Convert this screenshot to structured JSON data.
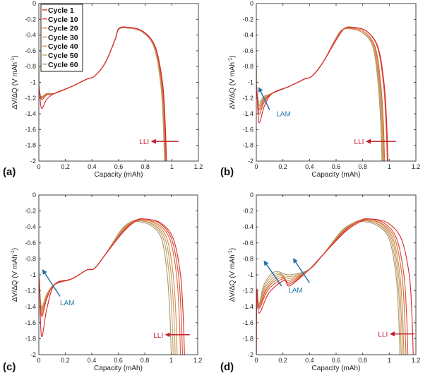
{
  "chart_data": [
    {
      "panel": "(a)",
      "type": "line",
      "xlabel": "Capacity (mAh)",
      "ylabel": "ΔV/ΔQ (V mAh-1)",
      "xlim": [
        0,
        1.2
      ],
      "ylim": [
        -2,
        0
      ],
      "xticks": [
        "0",
        "0.2",
        "0.4",
        "0.6",
        "0.8",
        "1",
        "1.2"
      ],
      "yticks": [
        "0",
        "-0.2",
        "-0.4",
        "-0.6",
        "-0.8",
        "-1",
        "-1.2",
        "-1.4",
        "-1.6",
        "-1.8",
        "-2"
      ],
      "legend": {
        "position": "top-left",
        "entries": [
          "Cycle 1",
          "Cycle 10",
          "Cycle 20",
          "Cycle 30",
          "Cycle 40",
          "Cycle 50",
          "Cycle 60"
        ]
      },
      "annotations": [
        {
          "text": "LLI",
          "type": "arrow-left",
          "y": -1.75,
          "x_from": 1.05,
          "x_to": 0.84
        }
      ],
      "series": [
        {
          "name": "Cycle 1",
          "end_capacity": 0.96,
          "min_y": -1.33,
          "peak": [
            0.66,
            -0.3
          ]
        },
        {
          "name": "Cycle 10",
          "end_capacity": 0.958,
          "min_y": -1.22,
          "peak": [
            0.66,
            -0.3
          ]
        },
        {
          "name": "Cycle 20",
          "end_capacity": 0.955,
          "min_y": -1.2,
          "peak": [
            0.66,
            -0.3
          ]
        },
        {
          "name": "Cycle 30",
          "end_capacity": 0.952,
          "min_y": -1.2,
          "peak": [
            0.66,
            -0.3
          ]
        },
        {
          "name": "Cycle 40",
          "end_capacity": 0.95,
          "min_y": -1.19,
          "peak": [
            0.66,
            -0.3
          ]
        },
        {
          "name": "Cycle 50",
          "end_capacity": 0.948,
          "min_y": -1.19,
          "peak": [
            0.66,
            -0.31
          ]
        },
        {
          "name": "Cycle 60",
          "end_capacity": 0.945,
          "min_y": -1.18,
          "peak": [
            0.66,
            -0.31
          ]
        }
      ]
    },
    {
      "panel": "(b)",
      "type": "line",
      "xlabel": "Capacity (mAh)",
      "ylabel": "ΔV/ΔQ (V mAh-1)",
      "xlim": [
        0,
        1.2
      ],
      "ylim": [
        -2,
        0
      ],
      "xticks": [
        "0",
        "0.2",
        "0.4",
        "0.6",
        "0.8",
        "1",
        "1.2"
      ],
      "yticks": [
        "0",
        "-0.2",
        "-0.4",
        "-0.6",
        "-0.8",
        "-1",
        "-1.2",
        "-1.4",
        "-1.6",
        "-1.8",
        "-2"
      ],
      "annotations": [
        {
          "text": "LAM",
          "type": "arrow-up-left",
          "x_from": 0.1,
          "y_from": -1.35,
          "x_to": 0.02,
          "y_to": -1.07
        },
        {
          "text": "LLI",
          "type": "arrow-left",
          "y": -1.75,
          "x_from": 1.05,
          "x_to": 0.82
        }
      ],
      "series": [
        {
          "name": "Cycle 1",
          "end_capacity": 0.99,
          "min_y": -1.51,
          "peak": [
            0.72,
            -0.3
          ]
        },
        {
          "name": "Cycle 10",
          "end_capacity": 0.985,
          "min_y": -1.4,
          "peak": [
            0.72,
            -0.3
          ]
        },
        {
          "name": "Cycle 20",
          "end_capacity": 0.965,
          "min_y": -1.35,
          "peak": [
            0.71,
            -0.31
          ]
        },
        {
          "name": "Cycle 30",
          "end_capacity": 0.96,
          "min_y": -1.33,
          "peak": [
            0.71,
            -0.31
          ]
        },
        {
          "name": "Cycle 40",
          "end_capacity": 0.955,
          "min_y": -1.3,
          "peak": [
            0.7,
            -0.32
          ]
        },
        {
          "name": "Cycle 50",
          "end_capacity": 0.95,
          "min_y": -1.28,
          "peak": [
            0.7,
            -0.32
          ]
        },
        {
          "name": "Cycle 60",
          "end_capacity": 0.945,
          "min_y": -1.25,
          "peak": [
            0.7,
            -0.32
          ]
        }
      ]
    },
    {
      "panel": "(c)",
      "type": "line",
      "xlabel": "Capacity (mAh)",
      "ylabel": "ΔV/ΔQ (V mAh-1)",
      "xlim": [
        0,
        1.2
      ],
      "ylim": [
        -2,
        0
      ],
      "xticks": [
        "0",
        "0.2",
        "0.4",
        "0.6",
        "0.8",
        "1",
        "1.2"
      ],
      "yticks": [
        "0",
        "-0.2",
        "-0.4",
        "-0.6",
        "-0.8",
        "-1",
        "-1.2",
        "-1.4",
        "-1.6",
        "-1.8",
        "-2"
      ],
      "annotations": [
        {
          "text": "LAM",
          "type": "arrow-up-left",
          "x_from": 0.16,
          "y_from": -1.27,
          "x_to": 0.03,
          "y_to": -0.94
        },
        {
          "text": "LLI",
          "type": "arrow-left",
          "y": -1.75,
          "x_from": 1.14,
          "x_to": 0.95
        }
      ],
      "series": [
        {
          "name": "Cycle 1",
          "end_capacity": 1.1,
          "min_y": -1.77,
          "peak": [
            0.8,
            -0.3
          ]
        },
        {
          "name": "Cycle 10",
          "end_capacity": 1.085,
          "min_y": -1.52,
          "peak": [
            0.79,
            -0.3
          ]
        },
        {
          "name": "Cycle 20",
          "end_capacity": 1.07,
          "min_y": -1.49,
          "peak": [
            0.78,
            -0.31
          ]
        },
        {
          "name": "Cycle 30",
          "end_capacity": 1.045,
          "min_y": -1.45,
          "peak": [
            0.77,
            -0.31
          ]
        },
        {
          "name": "Cycle 40",
          "end_capacity": 1.03,
          "min_y": -1.43,
          "peak": [
            0.76,
            -0.32
          ]
        },
        {
          "name": "Cycle 50",
          "end_capacity": 1.015,
          "min_y": -1.42,
          "peak": [
            0.75,
            -0.32
          ]
        },
        {
          "name": "Cycle 60",
          "end_capacity": 1.0,
          "min_y": -1.4,
          "peak": [
            0.74,
            -0.33
          ]
        }
      ]
    },
    {
      "panel": "(d)",
      "type": "line",
      "xlabel": "Capacity (mAh)",
      "ylabel": "ΔV/ΔQ (V mAh-1)",
      "xlim": [
        0,
        1.2
      ],
      "ylim": [
        -2,
        0
      ],
      "xticks": [
        "0",
        "0.2",
        "0.4",
        "0.6",
        "0.8",
        "1",
        "1.2"
      ],
      "yticks": [
        "0",
        "-0.2",
        "-0.4",
        "-0.6",
        "-0.8",
        "-1",
        "-1.2",
        "-1.4",
        "-1.6",
        "-1.8",
        "-2"
      ],
      "annotations": [
        {
          "text": "LAM",
          "type": "arrow-up-left",
          "x_from": 0.19,
          "y_from": -1.14,
          "x_to": 0.06,
          "y_to": -0.83
        },
        {
          "text": "LAM",
          "type": "arrow-up-left",
          "x_from": 0.4,
          "y_from": -1.1,
          "x_to": 0.28,
          "y_to": -0.8
        },
        {
          "text": "LLI",
          "type": "arrow-left",
          "y": -1.74,
          "x_from": 1.19,
          "x_to": 1.0
        }
      ],
      "series": [
        {
          "name": "Cycle 1",
          "end_capacity": 1.18,
          "min_y": -1.48,
          "peak": [
            0.86,
            -0.3
          ]
        },
        {
          "name": "Cycle 10",
          "end_capacity": 1.14,
          "min_y": -1.42,
          "peak": [
            0.84,
            -0.3
          ]
        },
        {
          "name": "Cycle 20",
          "end_capacity": 1.125,
          "min_y": -1.4,
          "peak": [
            0.83,
            -0.31
          ]
        },
        {
          "name": "Cycle 30",
          "end_capacity": 1.11,
          "min_y": -1.4,
          "peak": [
            0.82,
            -0.31
          ]
        },
        {
          "name": "Cycle 40",
          "end_capacity": 1.1,
          "min_y": -1.39,
          "peak": [
            0.81,
            -0.32
          ]
        },
        {
          "name": "Cycle 50",
          "end_capacity": 1.09,
          "min_y": -1.38,
          "peak": [
            0.8,
            -0.32
          ]
        },
        {
          "name": "Cycle 60",
          "end_capacity": 1.08,
          "min_y": -1.37,
          "peak": [
            0.79,
            -0.33
          ]
        }
      ]
    }
  ],
  "series_colors": [
    "#d7262e",
    "#d9482c",
    "#d76a3a",
    "#cf8a4e",
    "#c99a5e",
    "#bfa06a",
    "#a89a6a"
  ],
  "annotation_colors": {
    "LAM": "#1f6fa8",
    "LLI": "#c41e2a"
  },
  "panel_labels": [
    "(a)",
    "(b)",
    "(c)",
    "(d)"
  ],
  "axis_text": {
    "xlabel": "Capacity (mAh)",
    "ylabel_main": "ΔV/ΔQ (V mAh",
    "ylabel_sup": "-1",
    "ylabel_end": ")"
  }
}
